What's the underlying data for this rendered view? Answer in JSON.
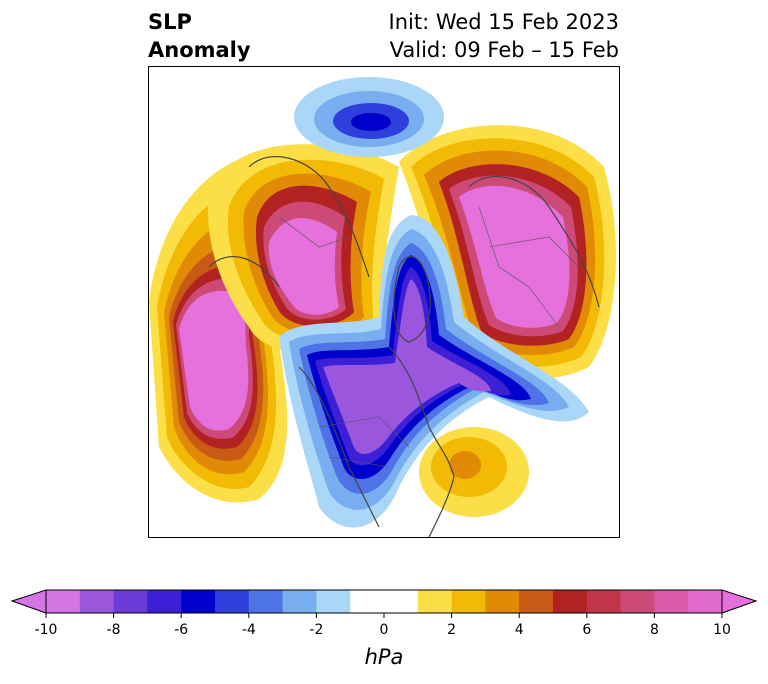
{
  "header": {
    "title_line1": "SLP",
    "title_line2": "Anomaly",
    "init_line": "Init: Wed 15 Feb 2023",
    "valid_line": "Valid: 09 Feb – 15 Feb"
  },
  "colorbar": {
    "unit_label": "hPa",
    "ticks": [
      "-10",
      "-8",
      "-6",
      "-4",
      "-2",
      "0",
      "2",
      "4",
      "6",
      "8",
      "10"
    ],
    "bin_colors": [
      "#d675e6",
      "#9b56de",
      "#6a3bd6",
      "#3d20d6",
      "#0000cc",
      "#2e3fdc",
      "#4e73e6",
      "#78aef0",
      "#aad6f8",
      "#ffffff",
      "#ffffff",
      "#fcdf46",
      "#f2b905",
      "#e08a05",
      "#c85a16",
      "#b22222",
      "#c2344a",
      "#cd4a78",
      "#d85aa8",
      "#e26bd0"
    ],
    "min_extend_color": "#d675e6",
    "max_extend_color": "#e670dc"
  }
}
